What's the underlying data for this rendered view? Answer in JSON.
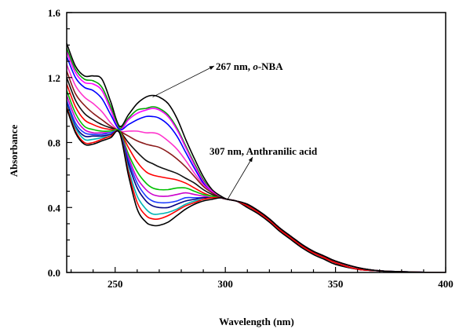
{
  "chart_data": {
    "type": "line",
    "xlabel": "Wavelength (nm)",
    "ylabel": "Absorbance",
    "xlim": [
      228,
      400
    ],
    "ylim": [
      0.0,
      1.6
    ],
    "x_ticks": [
      250,
      300,
      350,
      400
    ],
    "x_tick_labels": [
      "250",
      "300",
      "350",
      "400"
    ],
    "y_ticks": [
      0.0,
      0.4,
      0.8,
      1.2,
      1.6
    ],
    "y_tick_labels": [
      "0.0",
      "0.4",
      "0.8",
      "1.2",
      "1.6"
    ],
    "grid": false,
    "legend": "none",
    "annotations": [
      {
        "text_parts": [
          "267 nm, ",
          "o",
          "-NBA"
        ],
        "italic_part": 1,
        "points_to": {
          "x": 267,
          "y": 1.08
        }
      },
      {
        "text_parts": [
          "307 nm, Anthranilic acid"
        ],
        "italic_part": -1,
        "points_to": {
          "x": 301,
          "y": 0.45
        }
      }
    ],
    "x": [
      228,
      232,
      236,
      240,
      244,
      248,
      252,
      256,
      260,
      264,
      267,
      270,
      274,
      278,
      282,
      286,
      290,
      294,
      298,
      301,
      305,
      310,
      315,
      320,
      325,
      330,
      335,
      340,
      345,
      350,
      360,
      370,
      380,
      390,
      400
    ],
    "series": [
      {
        "color": "#000000",
        "values": [
          1.41,
          1.27,
          1.21,
          1.21,
          1.19,
          1.05,
          0.9,
          0.97,
          1.04,
          1.08,
          1.09,
          1.08,
          1.04,
          0.95,
          0.82,
          0.7,
          0.59,
          0.51,
          0.47,
          0.45,
          0.44,
          0.4,
          0.36,
          0.31,
          0.25,
          0.2,
          0.15,
          0.11,
          0.08,
          0.05,
          0.02,
          0.01,
          0.003,
          0.001,
          0.0
        ]
      },
      {
        "color": "#00a000",
        "values": [
          1.38,
          1.25,
          1.19,
          1.18,
          1.14,
          1.02,
          0.89,
          0.95,
          1.0,
          1.01,
          1.02,
          1.01,
          0.97,
          0.89,
          0.78,
          0.67,
          0.57,
          0.5,
          0.46,
          0.45,
          0.44,
          0.41,
          0.37,
          0.32,
          0.26,
          0.21,
          0.16,
          0.12,
          0.09,
          0.06,
          0.02,
          0.01,
          0.004,
          0.001,
          0.0
        ]
      },
      {
        "color": "#ff00ff",
        "values": [
          1.36,
          1.23,
          1.17,
          1.16,
          1.12,
          1.0,
          0.88,
          0.94,
          0.98,
          1.0,
          1.01,
          1.0,
          0.96,
          0.88,
          0.77,
          0.66,
          0.56,
          0.5,
          0.46,
          0.45,
          0.44,
          0.41,
          0.37,
          0.32,
          0.26,
          0.21,
          0.16,
          0.12,
          0.09,
          0.06,
          0.02,
          0.01,
          0.004,
          0.001,
          0.0
        ]
      },
      {
        "color": "#0000ff",
        "values": [
          1.33,
          1.2,
          1.14,
          1.12,
          1.07,
          0.97,
          0.88,
          0.91,
          0.94,
          0.96,
          0.96,
          0.95,
          0.91,
          0.84,
          0.74,
          0.64,
          0.55,
          0.49,
          0.46,
          0.45,
          0.44,
          0.41,
          0.37,
          0.32,
          0.26,
          0.21,
          0.16,
          0.12,
          0.09,
          0.06,
          0.02,
          0.01,
          0.004,
          0.001,
          0.0
        ]
      },
      {
        "color": "#ff33cc",
        "values": [
          1.28,
          1.15,
          1.08,
          1.04,
          0.99,
          0.92,
          0.87,
          0.87,
          0.87,
          0.86,
          0.86,
          0.85,
          0.81,
          0.76,
          0.69,
          0.61,
          0.54,
          0.49,
          0.46,
          0.45,
          0.44,
          0.41,
          0.37,
          0.32,
          0.26,
          0.21,
          0.16,
          0.12,
          0.09,
          0.06,
          0.02,
          0.01,
          0.004,
          0.001,
          0.0
        ]
      },
      {
        "color": "#8b1a1a",
        "values": [
          1.24,
          1.1,
          1.03,
          0.98,
          0.94,
          0.9,
          0.87,
          0.84,
          0.81,
          0.79,
          0.78,
          0.77,
          0.74,
          0.7,
          0.65,
          0.59,
          0.53,
          0.49,
          0.46,
          0.45,
          0.44,
          0.41,
          0.37,
          0.32,
          0.26,
          0.21,
          0.16,
          0.12,
          0.09,
          0.06,
          0.02,
          0.01,
          0.004,
          0.001,
          0.0
        ]
      },
      {
        "color": "#111111",
        "values": [
          1.2,
          1.06,
          0.98,
          0.94,
          0.91,
          0.89,
          0.87,
          0.8,
          0.74,
          0.69,
          0.67,
          0.65,
          0.63,
          0.61,
          0.58,
          0.55,
          0.51,
          0.48,
          0.46,
          0.45,
          0.44,
          0.41,
          0.37,
          0.32,
          0.26,
          0.21,
          0.16,
          0.12,
          0.09,
          0.06,
          0.02,
          0.01,
          0.004,
          0.001,
          0.0
        ]
      },
      {
        "color": "#ff0000",
        "values": [
          1.16,
          1.02,
          0.94,
          0.91,
          0.89,
          0.88,
          0.87,
          0.77,
          0.68,
          0.62,
          0.6,
          0.59,
          0.58,
          0.57,
          0.55,
          0.52,
          0.49,
          0.47,
          0.46,
          0.45,
          0.44,
          0.41,
          0.37,
          0.32,
          0.26,
          0.21,
          0.16,
          0.12,
          0.09,
          0.06,
          0.02,
          0.01,
          0.004,
          0.001,
          0.0
        ]
      },
      {
        "color": "#00c000",
        "values": [
          1.12,
          0.98,
          0.9,
          0.88,
          0.87,
          0.87,
          0.87,
          0.73,
          0.62,
          0.55,
          0.52,
          0.51,
          0.51,
          0.52,
          0.52,
          0.5,
          0.48,
          0.47,
          0.46,
          0.45,
          0.44,
          0.42,
          0.38,
          0.33,
          0.27,
          0.22,
          0.17,
          0.13,
          0.1,
          0.07,
          0.03,
          0.01,
          0.005,
          0.001,
          0.0
        ]
      },
      {
        "color": "#cc00cc",
        "values": [
          1.09,
          0.95,
          0.88,
          0.86,
          0.86,
          0.86,
          0.86,
          0.71,
          0.58,
          0.51,
          0.48,
          0.47,
          0.47,
          0.48,
          0.49,
          0.48,
          0.47,
          0.46,
          0.46,
          0.45,
          0.44,
          0.42,
          0.38,
          0.33,
          0.27,
          0.22,
          0.17,
          0.13,
          0.1,
          0.07,
          0.03,
          0.01,
          0.005,
          0.001,
          0.0
        ]
      },
      {
        "color": "#1e3cff",
        "values": [
          1.06,
          0.92,
          0.86,
          0.85,
          0.85,
          0.86,
          0.86,
          0.69,
          0.55,
          0.47,
          0.44,
          0.43,
          0.43,
          0.44,
          0.46,
          0.46,
          0.46,
          0.46,
          0.46,
          0.45,
          0.44,
          0.42,
          0.38,
          0.33,
          0.27,
          0.22,
          0.17,
          0.13,
          0.1,
          0.07,
          0.03,
          0.01,
          0.005,
          0.001,
          0.0
        ]
      },
      {
        "color": "#000080",
        "values": [
          1.04,
          0.9,
          0.84,
          0.84,
          0.84,
          0.85,
          0.86,
          0.67,
          0.52,
          0.44,
          0.41,
          0.4,
          0.4,
          0.42,
          0.44,
          0.45,
          0.46,
          0.46,
          0.46,
          0.45,
          0.44,
          0.42,
          0.38,
          0.33,
          0.27,
          0.22,
          0.17,
          0.13,
          0.1,
          0.07,
          0.03,
          0.01,
          0.005,
          0.001,
          0.0
        ]
      },
      {
        "color": "#00b4b4",
        "values": [
          1.03,
          0.89,
          0.82,
          0.82,
          0.83,
          0.84,
          0.86,
          0.64,
          0.47,
          0.39,
          0.36,
          0.36,
          0.37,
          0.39,
          0.42,
          0.44,
          0.45,
          0.46,
          0.46,
          0.45,
          0.44,
          0.42,
          0.38,
          0.33,
          0.27,
          0.22,
          0.17,
          0.13,
          0.1,
          0.07,
          0.03,
          0.01,
          0.005,
          0.001,
          0.0
        ]
      },
      {
        "color": "#ff0000",
        "values": [
          1.02,
          0.87,
          0.8,
          0.8,
          0.82,
          0.84,
          0.86,
          0.62,
          0.43,
          0.35,
          0.33,
          0.33,
          0.35,
          0.38,
          0.41,
          0.43,
          0.45,
          0.46,
          0.46,
          0.45,
          0.44,
          0.42,
          0.38,
          0.33,
          0.27,
          0.22,
          0.17,
          0.13,
          0.1,
          0.07,
          0.03,
          0.01,
          0.005,
          0.001,
          0.0
        ]
      },
      {
        "color": "#000000",
        "values": [
          1.01,
          0.86,
          0.79,
          0.79,
          0.81,
          0.83,
          0.86,
          0.6,
          0.39,
          0.31,
          0.29,
          0.29,
          0.31,
          0.35,
          0.39,
          0.42,
          0.44,
          0.45,
          0.46,
          0.45,
          0.44,
          0.42,
          0.38,
          0.33,
          0.27,
          0.22,
          0.17,
          0.13,
          0.1,
          0.07,
          0.03,
          0.01,
          0.005,
          0.001,
          0.0
        ]
      }
    ]
  }
}
